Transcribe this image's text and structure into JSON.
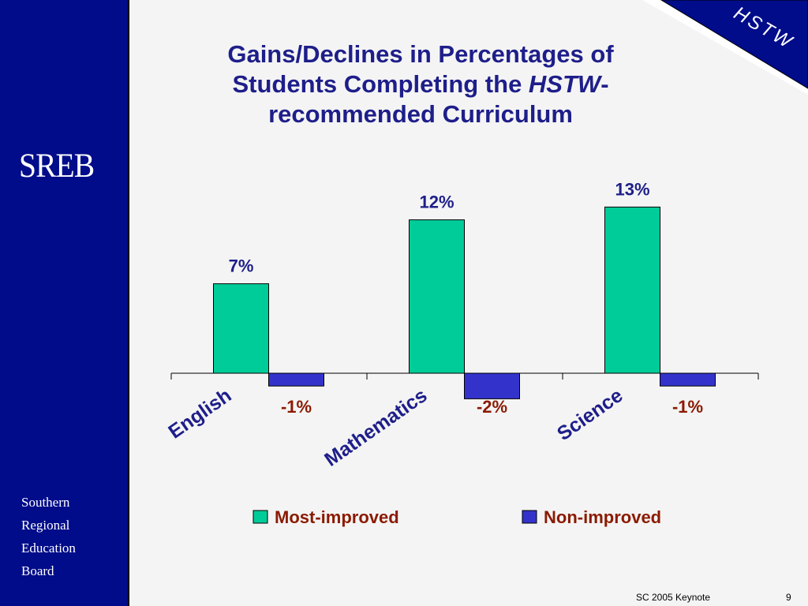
{
  "sidebar": {
    "logo": "SREB",
    "org_lines": [
      "Southern",
      "Regional",
      "Education",
      "Board"
    ]
  },
  "corner_badge": "HSTW",
  "title": {
    "line1": "Gains/Declines in Percentages of",
    "line2_before": "Students Completing the ",
    "line2_italic": "HSTW",
    "line2_after": "-",
    "line3": "recommended Curriculum"
  },
  "chart_data": {
    "type": "bar",
    "categories": [
      "English",
      "Mathematics",
      "Science"
    ],
    "series": [
      {
        "name": "Most-improved",
        "values": [
          7,
          12,
          13
        ],
        "labels": [
          "7%",
          "12%",
          "13%"
        ],
        "color": "#00cc99"
      },
      {
        "name": "Non-improved",
        "values": [
          -1,
          -2,
          -1
        ],
        "labels": [
          "-1%",
          "-2%",
          "-1%"
        ],
        "color": "#3333cc"
      }
    ],
    "legend_position": "bottom",
    "grid": false
  },
  "colors": {
    "sidebar": "#000c8a",
    "title": "#1e1e8a",
    "category_label": "#1e1e8a",
    "positive_label": "#1e1e8a",
    "negative_label": "#8b1a00",
    "legend_text": "#8b1a00"
  },
  "footer": {
    "left": "SC 2005 Keynote",
    "page": "9"
  }
}
